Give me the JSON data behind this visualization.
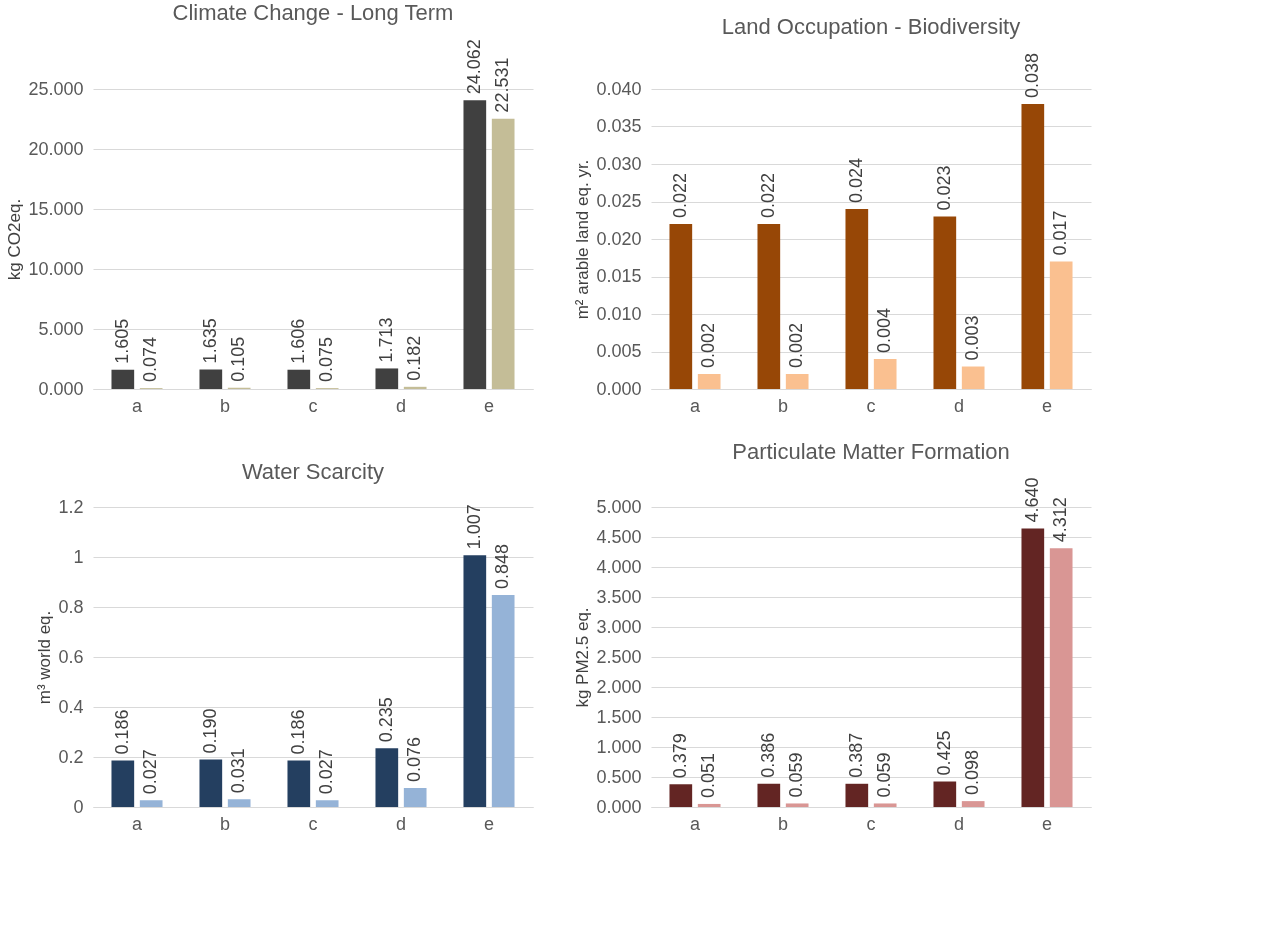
{
  "chart_data": [
    {
      "type": "bar",
      "title": "Climate Change - Long Term",
      "ylabel": "kg CO2eq.",
      "categories": [
        "a",
        "b",
        "c",
        "d",
        "e"
      ],
      "series": [
        {
          "color": "#404040",
          "values": [
            1.605,
            1.635,
            1.606,
            1.713,
            24.062
          ]
        },
        {
          "color": "#c4bd97",
          "values": [
            0.074,
            0.105,
            0.075,
            0.182,
            22.531
          ]
        }
      ],
      "ylim": [
        0,
        25
      ],
      "yticks": [
        {
          "value": 0,
          "label": "0.000"
        },
        {
          "value": 5,
          "label": "5.000"
        },
        {
          "value": 10,
          "label": "10.000"
        },
        {
          "value": 15,
          "label": "15.000"
        },
        {
          "value": 20,
          "label": "20.000"
        },
        {
          "value": 25,
          "label": "25.000"
        }
      ],
      "grid": "y",
      "data_labels": true
    },
    {
      "type": "bar",
      "title": "Land Occupation - Biodiversity",
      "ylabel": "m² arable land eq. yr.",
      "categories": [
        "a",
        "b",
        "c",
        "d",
        "e"
      ],
      "series": [
        {
          "color": "#974706",
          "values": [
            0.022,
            0.022,
            0.024,
            0.023,
            0.038
          ]
        },
        {
          "color": "#fac090",
          "values": [
            0.002,
            0.002,
            0.004,
            0.003,
            0.017
          ]
        }
      ],
      "ylim": [
        0,
        0.04
      ],
      "yticks": [
        {
          "value": 0,
          "label": "0.000"
        },
        0.005,
        {
          "value": 0.01,
          "label": "0.010"
        },
        0.015,
        {
          "value": 0.02,
          "label": "0.020"
        },
        0.025,
        {
          "value": 0.03,
          "label": "0.030"
        },
        0.035,
        {
          "value": 0.04,
          "label": "0.040"
        }
      ],
      "grid": "y",
      "data_labels": true
    },
    {
      "type": "bar",
      "title": "Water Scarcity",
      "ylabel": "m³ world eq.",
      "categories": [
        "a",
        "b",
        "c",
        "d",
        "e"
      ],
      "series": [
        {
          "color": "#243f60",
          "values": [
            0.186,
            0.19,
            0.186,
            0.235,
            1.007
          ],
          "value_labels": [
            "0.186",
            "0.190",
            "0.186",
            "0.235",
            "1.007"
          ]
        },
        {
          "color": "#95b3d7",
          "values": [
            0.027,
            0.031,
            0.027,
            0.076,
            0.848
          ],
          "value_labels": [
            "0.027",
            "0.031",
            "0.027",
            "0.076",
            "0.848"
          ]
        }
      ],
      "ylim": [
        0,
        1.2
      ],
      "yticks": [
        0,
        0.2,
        0.4,
        0.6,
        0.8,
        1,
        1.2
      ],
      "grid": "y"
    },
    {
      "type": "bar",
      "title": "Particulate Matter Formation",
      "ylabel": "kg PM2.5 eq.",
      "categories": [
        "a",
        "b",
        "c",
        "d",
        "e"
      ],
      "series": [
        {
          "color": "#632523",
          "values": [
            0.379,
            0.386,
            0.387,
            0.425,
            4.64
          ],
          "value_labels": [
            "0.379",
            "0.386",
            "0.387",
            "0.425",
            "4.640"
          ]
        },
        {
          "color": "#d99694",
          "values": [
            0.051,
            0.059,
            0.059,
            0.098,
            4.312
          ],
          "value_labels": [
            "0.051",
            "0.059",
            "0.059",
            "0.098",
            "4.312"
          ]
        }
      ],
      "ylim": [
        0,
        5
      ],
      "yticks": [
        {
          "value": 0,
          "label": "0.000"
        },
        {
          "value": 0.5,
          "label": "0.500"
        },
        {
          "value": 1,
          "label": "1.000"
        },
        {
          "value": 1.5,
          "label": "1.500"
        },
        {
          "value": 2,
          "label": "2.000"
        },
        {
          "value": 2.5,
          "label": "2.500"
        },
        {
          "value": 3,
          "label": "3.000"
        },
        {
          "value": 3.5,
          "label": "3.500"
        },
        {
          "value": 4,
          "label": "4.000"
        },
        {
          "value": 4.5,
          "label": "4.500"
        },
        {
          "value": 5,
          "label": "5.000"
        }
      ],
      "grid": "y"
    }
  ]
}
